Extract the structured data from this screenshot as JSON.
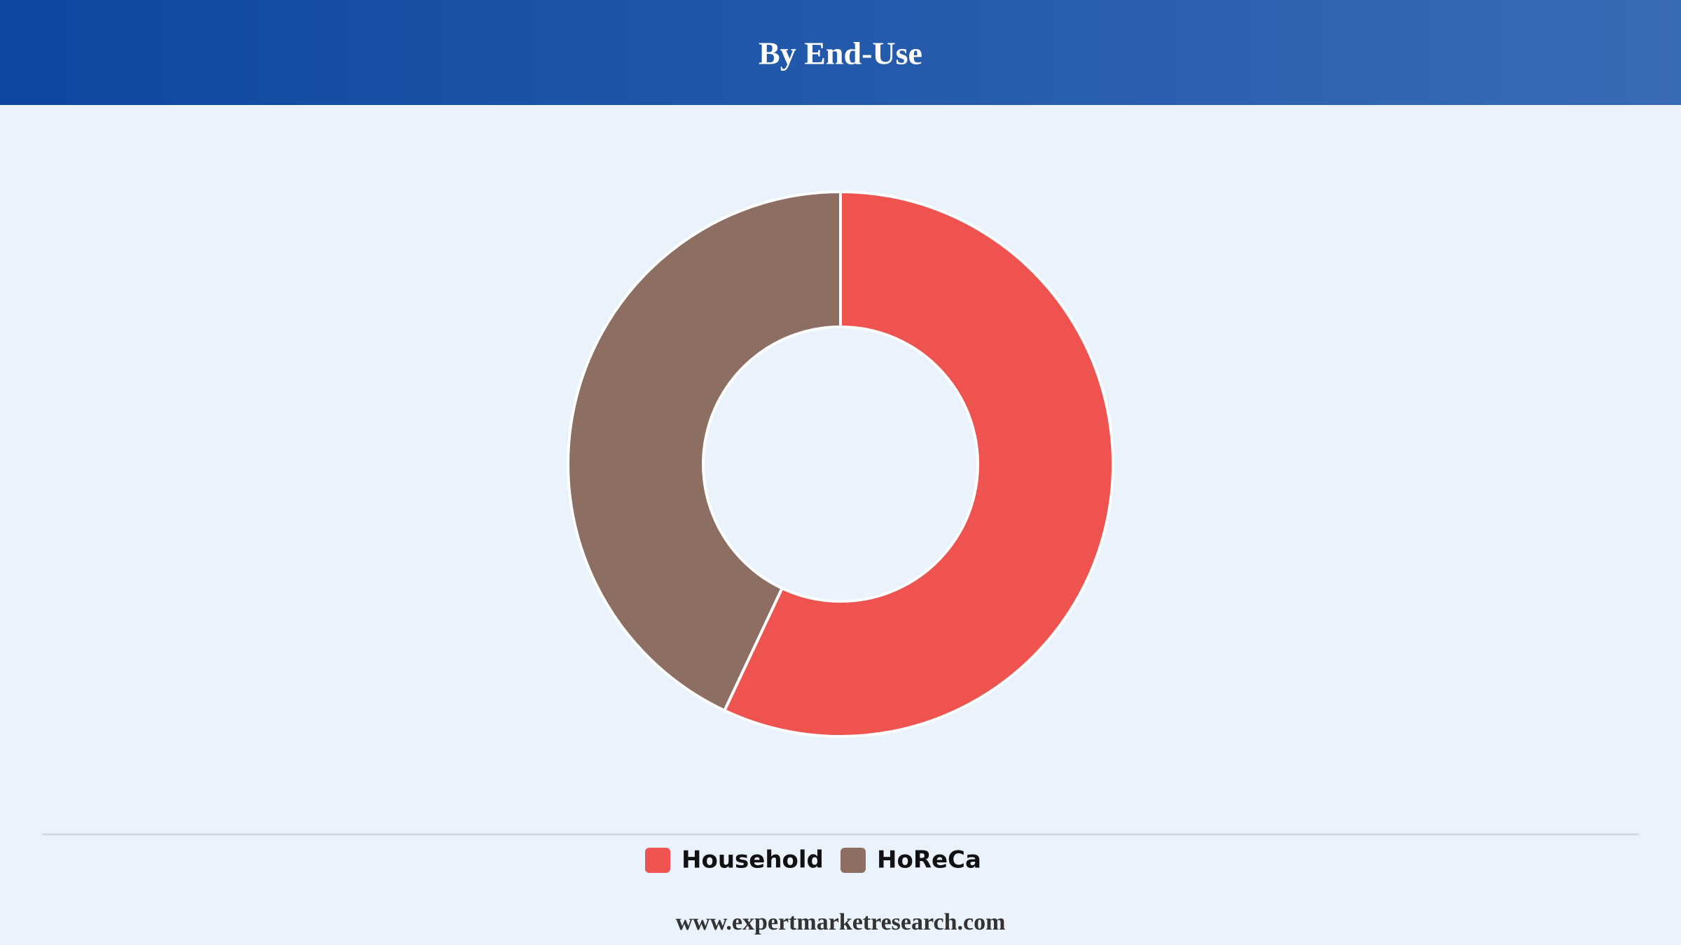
{
  "chart_data": {
    "type": "donut",
    "title": "By End-Use",
    "categories": [
      "Household",
      "HoReCa"
    ],
    "values": [
      57,
      43
    ],
    "colors": [
      "#ef5350",
      "#8d6e63"
    ],
    "legend": "bottom"
  },
  "footer": {
    "website": "www.expertmarketresearch.com"
  }
}
